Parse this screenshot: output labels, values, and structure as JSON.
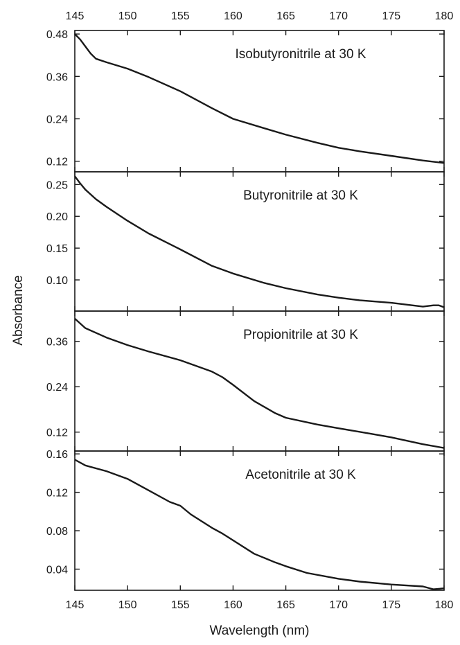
{
  "chart_data": {
    "type": "line",
    "xlabel": "Wavelength (nm)",
    "ylabel": "Absorbance",
    "xlim": [
      145,
      180
    ],
    "xticks": [
      145,
      150,
      155,
      160,
      165,
      170,
      175,
      180
    ],
    "x_tick_labels_top": true,
    "x_tick_labels_bottom": true,
    "grid": false,
    "line_color": "#1a1a1a",
    "panels": [
      {
        "label": "Isobutyronitrile at 30 K",
        "ylim": [
          0.09,
          0.49
        ],
        "yticks": [
          "0.12",
          "0.24",
          "0.36",
          "0.48"
        ],
        "x": [
          145,
          145.5,
          146,
          146.5,
          147,
          148,
          150,
          152,
          155,
          158,
          160,
          163,
          165,
          168,
          170,
          172,
          175,
          178,
          180
        ],
        "y": [
          0.48,
          0.465,
          0.445,
          0.425,
          0.41,
          0.4,
          0.382,
          0.358,
          0.318,
          0.27,
          0.24,
          0.213,
          0.195,
          0.172,
          0.158,
          0.148,
          0.135,
          0.122,
          0.115
        ]
      },
      {
        "label": "Butyronitrile at 30 K",
        "ylim": [
          0.051,
          0.27
        ],
        "yticks": [
          "0.10",
          "0.15",
          "0.20",
          "0.25"
        ],
        "x": [
          145,
          145.5,
          146,
          147,
          148,
          150,
          152,
          155,
          158,
          160,
          163,
          165,
          168,
          170,
          172,
          175,
          178,
          179,
          179.5,
          180
        ],
        "y": [
          0.263,
          0.252,
          0.242,
          0.227,
          0.215,
          0.193,
          0.173,
          0.148,
          0.122,
          0.11,
          0.095,
          0.087,
          0.077,
          0.072,
          0.068,
          0.064,
          0.058,
          0.06,
          0.06,
          0.057
        ]
      },
      {
        "label": "Propionitrile at 30 K",
        "ylim": [
          0.07,
          0.44
        ],
        "yticks": [
          "0.12",
          "0.24",
          "0.36"
        ],
        "x": [
          145,
          146,
          148,
          150,
          152,
          155,
          157,
          158,
          159,
          160,
          162,
          164,
          165,
          168,
          170,
          173,
          175,
          178,
          180
        ],
        "y": [
          0.42,
          0.395,
          0.37,
          0.35,
          0.333,
          0.31,
          0.29,
          0.28,
          0.265,
          0.245,
          0.202,
          0.17,
          0.158,
          0.14,
          0.13,
          0.116,
          0.106,
          0.088,
          0.078
        ]
      },
      {
        "label": "Acetonitrile at 30 K",
        "ylim": [
          0.018,
          0.163
        ],
        "yticks": [
          "0.04",
          "0.08",
          "0.12",
          "0.16"
        ],
        "x": [
          145,
          146,
          148,
          150,
          152,
          154,
          155,
          156,
          158,
          159,
          160,
          162,
          164,
          165,
          167,
          170,
          172,
          175,
          178,
          179,
          180
        ],
        "y": [
          0.154,
          0.148,
          0.142,
          0.134,
          0.122,
          0.11,
          0.106,
          0.097,
          0.083,
          0.077,
          0.07,
          0.056,
          0.047,
          0.043,
          0.036,
          0.03,
          0.027,
          0.024,
          0.022,
          0.019,
          0.02
        ]
      }
    ]
  }
}
